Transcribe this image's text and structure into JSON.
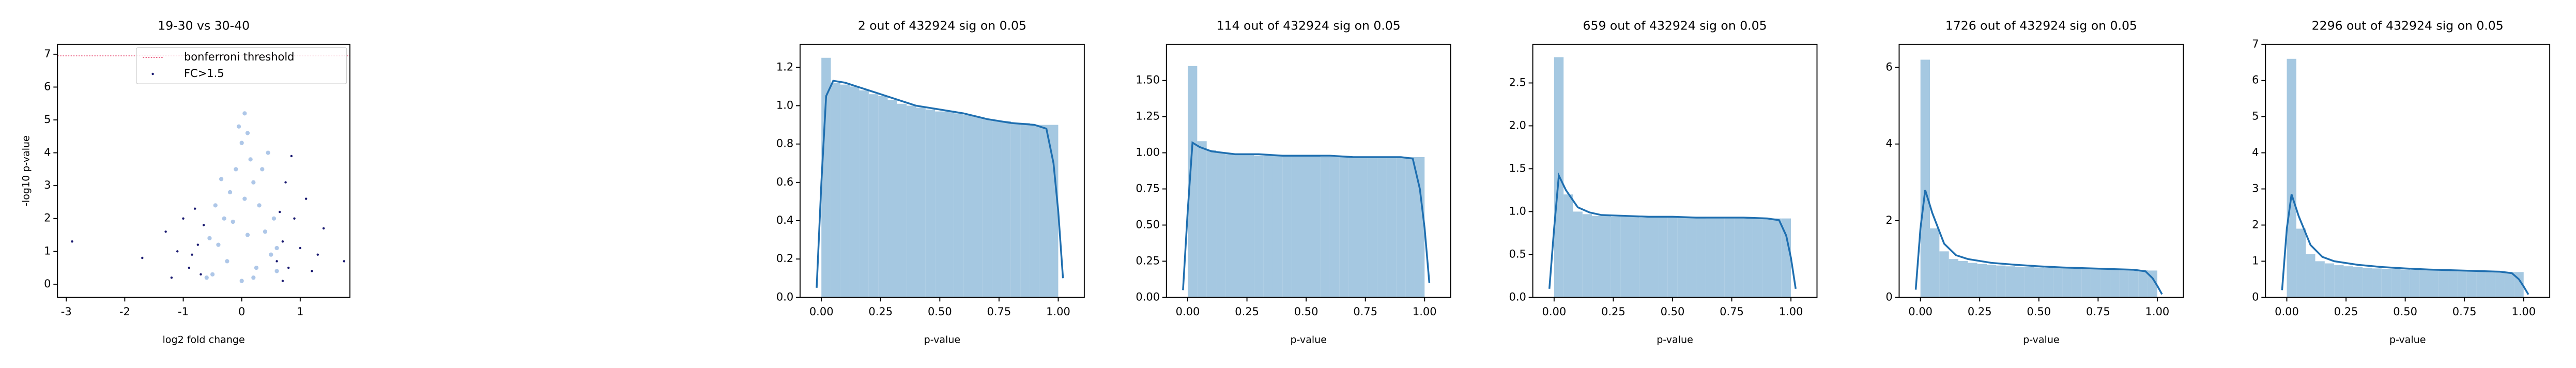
{
  "chart_data": [
    {
      "type": "scatter",
      "title": "19-30 vs 30-40",
      "x_label": "log2 fold change",
      "y_label": "-log10 p-value",
      "xlim": [
        -3.15,
        1.85
      ],
      "ylim": [
        -0.4,
        7.3
      ],
      "xticks": [
        -3,
        -2,
        -1,
        0,
        1
      ],
      "yticks": [
        0,
        1,
        2,
        3,
        4,
        5,
        6,
        7
      ],
      "background_points": {
        "color": "#aec7e8",
        "x": [
          -0.5,
          -0.4,
          -0.3,
          -0.2,
          -0.1,
          0,
          0.05,
          0.1,
          0.15,
          0.2,
          0.3,
          0.4,
          0.5,
          0.6,
          -0.6,
          0.25,
          -0.25,
          0,
          0.1,
          -0.15,
          0.35,
          -0.35,
          0.55,
          -0.55,
          0.05,
          0.45,
          -0.05,
          0.2,
          -0.45,
          0.6
        ],
        "y": [
          0.3,
          1.2,
          2.0,
          2.8,
          3.5,
          4.3,
          5.2,
          4.6,
          3.8,
          3.1,
          2.4,
          1.6,
          0.9,
          0.4,
          0.2,
          0.5,
          0.7,
          0.1,
          1.5,
          1.9,
          3.5,
          3.2,
          2.0,
          1.4,
          2.6,
          4.0,
          4.8,
          0.2,
          2.4,
          1.1
        ]
      },
      "series": [
        {
          "name": "FC>1.5",
          "color": "#191970",
          "x": [
            -2.9,
            -1.7,
            -1.3,
            -1.1,
            -0.9,
            -0.8,
            -0.75,
            -0.7,
            -0.65,
            -1.0,
            -0.85,
            -1.2,
            0.6,
            0.65,
            0.7,
            0.75,
            0.8,
            0.9,
            1.0,
            1.1,
            1.2,
            0.85,
            1.4,
            1.75,
            0.7,
            1.3
          ],
          "y": [
            1.3,
            0.8,
            1.6,
            1.0,
            0.5,
            2.3,
            1.2,
            0.3,
            1.8,
            2.0,
            0.9,
            0.2,
            0.7,
            2.2,
            1.3,
            3.1,
            0.5,
            2.0,
            1.1,
            2.6,
            0.4,
            3.9,
            1.7,
            0.7,
            0.1,
            0.9
          ]
        }
      ],
      "threshold": {
        "name": "bonferroni threshold",
        "value": 6.95,
        "color": "#e8567a"
      }
    },
    {
      "type": "histogram",
      "title": "2 out of 432924 sig on 0.05",
      "x_label": "p-value",
      "color": "#a5c8e1",
      "bins": [
        0,
        0.04,
        0.08,
        0.12,
        0.16,
        0.2,
        0.24,
        0.28,
        0.32,
        0.36,
        0.4,
        0.44,
        0.48,
        0.52,
        0.56,
        0.6,
        0.64,
        0.68,
        0.72,
        0.76,
        0.8,
        0.84,
        0.88,
        0.92,
        0.96,
        1.0
      ],
      "values": [
        1.25,
        1.12,
        1.11,
        1.1,
        1.08,
        1.06,
        1.05,
        1.03,
        1.01,
        1.0,
        0.99,
        0.98,
        0.97,
        0.97,
        0.96,
        0.95,
        0.94,
        0.93,
        0.92,
        0.92,
        0.91,
        0.91,
        0.9,
        0.9,
        0.9
      ],
      "line": {
        "color": "#1f6fb0",
        "x": [
          -0.02,
          0,
          0.02,
          0.05,
          0.1,
          0.2,
          0.3,
          0.4,
          0.5,
          0.6,
          0.7,
          0.8,
          0.9,
          0.95,
          0.98,
          1.0,
          1.02
        ],
        "y": [
          0.05,
          0.6,
          1.05,
          1.13,
          1.12,
          1.08,
          1.04,
          1.0,
          0.98,
          0.96,
          0.93,
          0.91,
          0.9,
          0.88,
          0.7,
          0.45,
          0.1
        ]
      },
      "xlim": [
        -0.09,
        1.11
      ],
      "ylim": [
        0,
        1.32
      ],
      "xticks": [
        {
          "value": 0,
          "label": "0.00"
        },
        {
          "value": 0.25,
          "label": "0.25"
        },
        {
          "value": 0.5,
          "label": "0.50"
        },
        {
          "value": 0.75,
          "label": "0.75"
        },
        {
          "value": 1,
          "label": "1.00"
        }
      ],
      "yticks": [
        {
          "value": 0,
          "label": "0.0"
        },
        {
          "value": 0.2,
          "label": "0.2"
        },
        {
          "value": 0.4,
          "label": "0.4"
        },
        {
          "value": 0.6,
          "label": "0.6"
        },
        {
          "value": 0.8,
          "label": "0.8"
        },
        {
          "value": 1,
          "label": "1.0"
        },
        {
          "value": 1.2,
          "label": "1.2"
        }
      ]
    },
    {
      "type": "histogram",
      "title": "114 out of 432924 sig on 0.05",
      "x_label": "p-value",
      "color": "#a5c8e1",
      "bins": [
        0,
        0.04,
        0.08,
        0.12,
        0.16,
        0.2,
        0.24,
        0.28,
        0.32,
        0.36,
        0.4,
        0.44,
        0.48,
        0.52,
        0.56,
        0.6,
        0.64,
        0.68,
        0.72,
        0.76,
        0.8,
        0.84,
        0.88,
        0.92,
        0.96,
        1.0
      ],
      "values": [
        1.6,
        1.08,
        1.02,
        1.0,
        0.99,
        0.99,
        0.99,
        0.98,
        0.98,
        0.98,
        0.98,
        0.98,
        0.98,
        0.98,
        0.97,
        0.97,
        0.97,
        0.97,
        0.97,
        0.97,
        0.97,
        0.97,
        0.97,
        0.97,
        0.97
      ],
      "line": {
        "color": "#1f6fb0",
        "x": [
          -0.02,
          0,
          0.02,
          0.05,
          0.1,
          0.2,
          0.3,
          0.4,
          0.5,
          0.6,
          0.7,
          0.8,
          0.9,
          0.95,
          0.98,
          1.0,
          1.02
        ],
        "y": [
          0.05,
          0.6,
          1.07,
          1.04,
          1.01,
          0.99,
          0.99,
          0.98,
          0.98,
          0.98,
          0.97,
          0.97,
          0.97,
          0.96,
          0.75,
          0.48,
          0.1
        ]
      },
      "xlim": [
        -0.09,
        1.11
      ],
      "ylim": [
        0,
        1.75
      ],
      "xticks": [
        {
          "value": 0,
          "label": "0.00"
        },
        {
          "value": 0.25,
          "label": "0.25"
        },
        {
          "value": 0.5,
          "label": "0.50"
        },
        {
          "value": 0.75,
          "label": "0.75"
        },
        {
          "value": 1,
          "label": "1.00"
        }
      ],
      "yticks": [
        {
          "value": 0,
          "label": "0.00"
        },
        {
          "value": 0.25,
          "label": "0.25"
        },
        {
          "value": 0.5,
          "label": "0.50"
        },
        {
          "value": 0.75,
          "label": "0.75"
        },
        {
          "value": 1,
          "label": "1.00"
        },
        {
          "value": 1.25,
          "label": "1.25"
        },
        {
          "value": 1.5,
          "label": "1.50"
        }
      ]
    },
    {
      "type": "histogram",
      "title": "659 out of 432924 sig on 0.05",
      "x_label": "p-value",
      "color": "#a5c8e1",
      "bins": [
        0,
        0.04,
        0.08,
        0.12,
        0.16,
        0.2,
        0.24,
        0.28,
        0.32,
        0.36,
        0.4,
        0.44,
        0.48,
        0.52,
        0.56,
        0.6,
        0.64,
        0.68,
        0.72,
        0.76,
        0.8,
        0.84,
        0.88,
        0.92,
        0.96,
        1.0
      ],
      "values": [
        2.8,
        1.2,
        1.0,
        0.97,
        0.95,
        0.95,
        0.94,
        0.94,
        0.94,
        0.93,
        0.93,
        0.93,
        0.93,
        0.93,
        0.93,
        0.93,
        0.92,
        0.92,
        0.92,
        0.92,
        0.92,
        0.92,
        0.92,
        0.92,
        0.92
      ],
      "line": {
        "color": "#1f6fb0",
        "x": [
          -0.02,
          0,
          0.02,
          0.05,
          0.1,
          0.15,
          0.2,
          0.3,
          0.4,
          0.5,
          0.6,
          0.7,
          0.8,
          0.9,
          0.95,
          0.98,
          1.0,
          1.02
        ],
        "y": [
          0.1,
          0.8,
          1.42,
          1.25,
          1.05,
          0.99,
          0.96,
          0.95,
          0.94,
          0.94,
          0.93,
          0.93,
          0.93,
          0.92,
          0.9,
          0.72,
          0.46,
          0.1
        ]
      },
      "xlim": [
        -0.09,
        1.11
      ],
      "ylim": [
        0,
        2.95
      ],
      "xticks": [
        {
          "value": 0,
          "label": "0.00"
        },
        {
          "value": 0.25,
          "label": "0.25"
        },
        {
          "value": 0.5,
          "label": "0.50"
        },
        {
          "value": 0.75,
          "label": "0.75"
        },
        {
          "value": 1,
          "label": "1.00"
        }
      ],
      "yticks": [
        {
          "value": 0,
          "label": "0.0"
        },
        {
          "value": 0.5,
          "label": "0.5"
        },
        {
          "value": 1,
          "label": "1.0"
        },
        {
          "value": 1.5,
          "label": "1.5"
        },
        {
          "value": 2,
          "label": "2.0"
        },
        {
          "value": 2.5,
          "label": "2.5"
        }
      ]
    },
    {
      "type": "histogram",
      "title": "1726 out of 432924 sig on 0.05",
      "x_label": "p-value",
      "color": "#a5c8e1",
      "bins": [
        0,
        0.04,
        0.08,
        0.12,
        0.16,
        0.2,
        0.24,
        0.28,
        0.32,
        0.36,
        0.4,
        0.44,
        0.48,
        0.52,
        0.56,
        0.6,
        0.64,
        0.68,
        0.72,
        0.76,
        0.8,
        0.84,
        0.88,
        0.92,
        0.96,
        1.0
      ],
      "values": [
        6.2,
        1.8,
        1.2,
        1.0,
        0.95,
        0.9,
        0.87,
        0.85,
        0.83,
        0.81,
        0.8,
        0.79,
        0.78,
        0.77,
        0.76,
        0.76,
        0.75,
        0.74,
        0.74,
        0.73,
        0.72,
        0.72,
        0.71,
        0.71,
        0.7
      ],
      "line": {
        "color": "#1f6fb0",
        "x": [
          -0.02,
          0,
          0.02,
          0.05,
          0.1,
          0.15,
          0.2,
          0.3,
          0.4,
          0.5,
          0.6,
          0.7,
          0.8,
          0.9,
          0.95,
          0.98,
          1.0,
          1.02
        ],
        "y": [
          0.2,
          1.8,
          2.8,
          2.2,
          1.4,
          1.1,
          1.0,
          0.9,
          0.85,
          0.81,
          0.78,
          0.76,
          0.74,
          0.72,
          0.68,
          0.5,
          0.3,
          0.08
        ]
      },
      "xlim": [
        -0.09,
        1.11
      ],
      "ylim": [
        0,
        6.6
      ],
      "xticks": [
        {
          "value": 0,
          "label": "0.00"
        },
        {
          "value": 0.25,
          "label": "0.25"
        },
        {
          "value": 0.5,
          "label": "0.50"
        },
        {
          "value": 0.75,
          "label": "0.75"
        },
        {
          "value": 1,
          "label": "1.00"
        }
      ],
      "yticks": [
        0,
        2,
        4,
        6
      ]
    },
    {
      "type": "histogram",
      "title": "2296 out of 432924 sig on 0.05",
      "x_label": "p-value",
      "color": "#a5c8e1",
      "bins": [
        0,
        0.04,
        0.08,
        0.12,
        0.16,
        0.2,
        0.24,
        0.28,
        0.32,
        0.36,
        0.4,
        0.44,
        0.48,
        0.52,
        0.56,
        0.6,
        0.64,
        0.68,
        0.72,
        0.76,
        0.8,
        0.84,
        0.88,
        0.92,
        0.96,
        1.0
      ],
      "values": [
        6.6,
        1.9,
        1.2,
        1.0,
        0.94,
        0.89,
        0.86,
        0.84,
        0.82,
        0.8,
        0.79,
        0.78,
        0.77,
        0.76,
        0.75,
        0.75,
        0.74,
        0.73,
        0.73,
        0.72,
        0.72,
        0.71,
        0.71,
        0.7,
        0.7
      ],
      "line": {
        "color": "#1f6fb0",
        "x": [
          -0.02,
          0,
          0.02,
          0.05,
          0.1,
          0.15,
          0.2,
          0.3,
          0.4,
          0.5,
          0.6,
          0.7,
          0.8,
          0.9,
          0.95,
          0.98,
          1.0,
          1.02
        ],
        "y": [
          0.2,
          1.9,
          2.85,
          2.25,
          1.45,
          1.12,
          1.0,
          0.9,
          0.84,
          0.8,
          0.77,
          0.75,
          0.73,
          0.71,
          0.67,
          0.5,
          0.3,
          0.08
        ]
      },
      "xlim": [
        -0.09,
        1.11
      ],
      "ylim": [
        0,
        7
      ],
      "xticks": [
        {
          "value": 0,
          "label": "0.00"
        },
        {
          "value": 0.25,
          "label": "0.25"
        },
        {
          "value": 0.5,
          "label": "0.50"
        },
        {
          "value": 0.75,
          "label": "0.75"
        },
        {
          "value": 1,
          "label": "1.00"
        }
      ],
      "yticks": [
        0,
        1,
        2,
        3,
        4,
        5,
        6,
        7
      ]
    }
  ]
}
